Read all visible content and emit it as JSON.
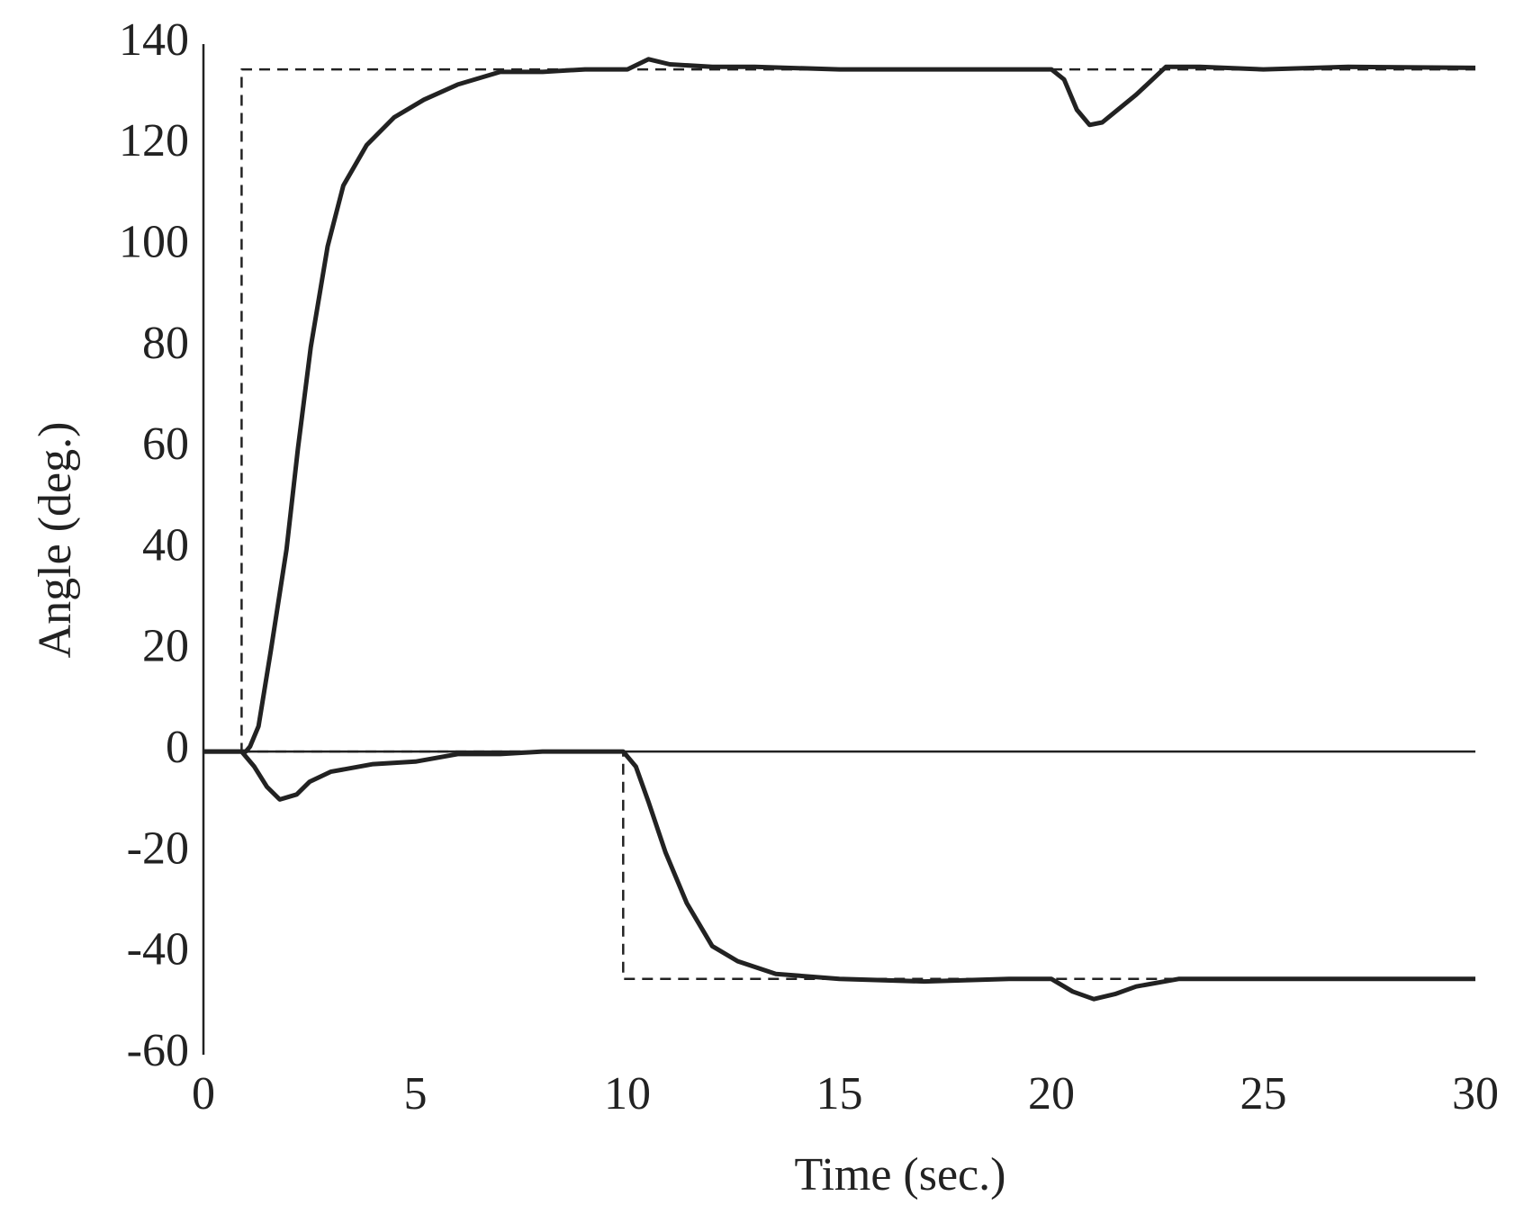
{
  "chart_data": {
    "type": "line",
    "x_label": "Time (sec.)",
    "y_label": "Angle (deg.)",
    "xlim": [
      0,
      30
    ],
    "xticks": [
      0,
      5,
      10,
      15,
      20,
      25,
      30
    ],
    "ylim": [
      -60,
      140
    ],
    "yticks": [
      -60,
      -40,
      -20,
      0,
      20,
      40,
      60,
      80,
      100,
      120,
      140
    ],
    "grid": false,
    "series": [
      {
        "color": "#222222",
        "dash": true,
        "x": [
          0,
          0.9,
          0.9,
          30
        ],
        "values": [
          0,
          0,
          135,
          135
        ]
      },
      {
        "color": "#222222",
        "dash": true,
        "x": [
          0,
          9.9,
          9.9,
          30
        ],
        "values": [
          0,
          0,
          -45,
          -45
        ]
      },
      {
        "color": "#222222",
        "dash": false,
        "x": [
          0,
          1,
          1.1,
          1.3,
          1.59,
          1.96,
          2.23,
          2.53,
          2.93,
          3.3,
          3.85,
          4.5,
          5.2,
          6,
          7,
          8,
          9,
          10,
          10.5,
          11,
          12,
          13,
          15,
          20,
          20.3,
          20.6,
          20.9,
          21.2,
          22,
          22.7,
          23.5,
          25,
          27,
          30
        ],
        "values": [
          0,
          0,
          1,
          5,
          20,
          40,
          60,
          80,
          100,
          112,
          120,
          125.5,
          129,
          132,
          134.5,
          134.5,
          135,
          135,
          137,
          136,
          135.5,
          135.5,
          135,
          135,
          133,
          127,
          124,
          124.5,
          130,
          135.5,
          135.5,
          135,
          135.5,
          135.3
        ]
      },
      {
        "color": "#222222",
        "dash": false,
        "x": [
          0,
          0.9,
          1.2,
          1.5,
          1.8,
          2.2,
          2.5,
          3,
          4,
          5,
          6,
          7,
          8,
          9,
          9.9,
          10.2,
          10.5,
          10.9,
          11.4,
          12,
          12.6,
          13.5,
          15,
          17,
          19,
          20,
          20.5,
          21,
          21.5,
          22,
          23,
          30
        ],
        "values": [
          0,
          0,
          -3,
          -7,
          -9.5,
          -8.5,
          -6,
          -4,
          -2.5,
          -2,
          -0.5,
          -0.5,
          0,
          0,
          0,
          -3,
          -10,
          -20,
          -30,
          -38.5,
          -41.5,
          -44,
          -45,
          -45.5,
          -45,
          -45,
          -47.5,
          -49,
          -48,
          -46.5,
          -45,
          -45
        ]
      }
    ]
  }
}
